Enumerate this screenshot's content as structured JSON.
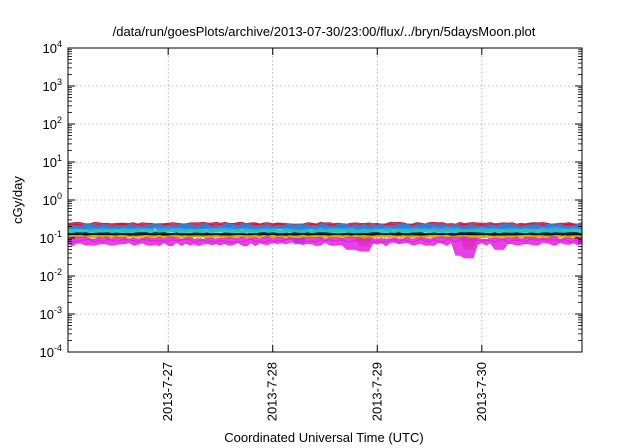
{
  "chart_data": {
    "type": "line",
    "title": "/data/run/goesPlots/archive/2013-07-30/23:00/flux/../bryn/5daysMoon.plot",
    "xlabel": "Coordinated Universal Time (UTC)",
    "ylabel": "cGy/day",
    "yscale": "log",
    "ylim": [
      0.0001,
      10000
    ],
    "xlim": [
      "2013-07-26 01:00",
      "2013-07-30 23:00"
    ],
    "grid": true,
    "legend": "none",
    "y_ticks": [
      {
        "value": 0.0001,
        "base": "10",
        "exp": "-4"
      },
      {
        "value": 0.001,
        "base": "10",
        "exp": "-3"
      },
      {
        "value": 0.01,
        "base": "10",
        "exp": "-2"
      },
      {
        "value": 0.1,
        "base": "10",
        "exp": "-1"
      },
      {
        "value": 1,
        "base": "10",
        "exp": "0"
      },
      {
        "value": 10,
        "base": "10",
        "exp": "1"
      },
      {
        "value": 100,
        "base": "10",
        "exp": "2"
      },
      {
        "value": 1000,
        "base": "10",
        "exp": "3"
      },
      {
        "value": 10000,
        "base": "10",
        "exp": "4"
      }
    ],
    "x_ticks": [
      {
        "value": "2013-07-27 00:00",
        "label": "2013-7-27"
      },
      {
        "value": "2013-07-28 00:00",
        "label": "2013-7-28"
      },
      {
        "value": "2013-07-29 00:00",
        "label": "2013-7-29"
      },
      {
        "value": "2013-07-30 00:00",
        "label": "2013-7-30"
      }
    ],
    "series": [
      {
        "color": "#d0103a",
        "base": 0.22,
        "jitter": 0.14,
        "dips": [
          [
            "2013-07-28 06:00",
            0.08
          ],
          [
            "2013-07-28 21:00",
            0.1
          ],
          [
            "2013-07-29 21:00",
            0.08
          ]
        ]
      },
      {
        "color": "#2288dd",
        "base": 0.19,
        "jitter": 0.18,
        "dips": [
          [
            "2013-07-28 06:00",
            0.07
          ],
          [
            "2013-07-28 21:00",
            0.08
          ],
          [
            "2013-07-29 21:00",
            0.07
          ]
        ]
      },
      {
        "color": "#20c8b0",
        "base": 0.15,
        "jitter": 0.12,
        "dips": [
          [
            "2013-07-28 21:00",
            0.07
          ],
          [
            "2013-07-29 21:00",
            0.06
          ]
        ]
      },
      {
        "color": "#000000",
        "base": 0.125,
        "jitter": 0.08,
        "dips": [
          [
            "2013-07-28 21:00",
            0.07
          ],
          [
            "2013-07-29 21:00",
            0.06
          ]
        ]
      },
      {
        "color": "#f0a000",
        "base": 0.11,
        "jitter": 0.06,
        "dips": [
          [
            "2013-07-28 21:00",
            0.06
          ],
          [
            "2013-07-29 21:00",
            0.05
          ]
        ]
      },
      {
        "color": "#e020e0",
        "base": 0.085,
        "jitter": 0.2,
        "dips": [
          [
            "2013-07-28 18:00",
            0.05
          ],
          [
            "2013-07-28 21:00",
            0.045
          ],
          [
            "2013-07-29 19:00",
            0.035
          ],
          [
            "2013-07-29 21:00",
            0.03
          ],
          [
            "2013-07-30 04:00",
            0.05
          ]
        ]
      }
    ]
  }
}
